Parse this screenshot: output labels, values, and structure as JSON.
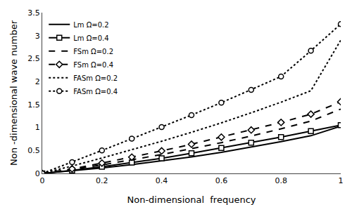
{
  "chart_data": {
    "type": "line",
    "x": [
      0.0,
      0.1,
      0.2,
      0.3,
      0.4,
      0.5,
      0.6,
      0.7,
      0.8,
      0.9,
      1.0
    ],
    "series": [
      {
        "name": "Lm Ω=0.2",
        "values": [
          0.0,
          0.055,
          0.12,
          0.19,
          0.27,
          0.36,
          0.46,
          0.57,
          0.69,
          0.82,
          1.03
        ],
        "line_style": "solid"
      },
      {
        "name": "Lm Ω=0.4",
        "values": [
          0.0,
          0.065,
          0.145,
          0.235,
          0.33,
          0.44,
          0.555,
          0.67,
          0.79,
          0.92,
          1.05
        ],
        "line_style": "solid",
        "marker": "square"
      },
      {
        "name": "FSm Ω=0.2",
        "values": [
          0.0,
          0.085,
          0.185,
          0.295,
          0.41,
          0.54,
          0.67,
          0.815,
          0.97,
          1.14,
          1.4
        ],
        "line_style": "dashed"
      },
      {
        "name": "FSm Ω=0.4",
        "values": [
          0.0,
          0.1,
          0.225,
          0.355,
          0.49,
          0.635,
          0.79,
          0.945,
          1.11,
          1.29,
          1.56
        ],
        "line_style": "dashed",
        "marker": "diamond"
      },
      {
        "name": "FASm Ω=0.2",
        "values": [
          0.0,
          0.16,
          0.335,
          0.515,
          0.7,
          0.895,
          1.1,
          1.32,
          1.55,
          1.8,
          2.9
        ],
        "line_style": "dotted"
      },
      {
        "name": "FASm Ω=0.4",
        "values": [
          0.0,
          0.245,
          0.5,
          0.755,
          1.01,
          1.27,
          1.54,
          1.82,
          2.11,
          2.67,
          3.25
        ],
        "line_style": "dotted",
        "marker": "circle"
      }
    ],
    "color": "#000000",
    "xlabel": "Non-dimensional  frequency",
    "ylabel": "Non -dimensional wave number",
    "xlim": [
      0,
      1
    ],
    "ylim": [
      0,
      3.5
    ],
    "xticks": [
      0,
      0.2,
      0.4,
      0.6,
      0.8,
      1.0
    ],
    "yticks": [
      0,
      0.5,
      1.0,
      1.5,
      2.0,
      2.5,
      3.0,
      3.5
    ],
    "grid": false,
    "legend": "upper left"
  }
}
